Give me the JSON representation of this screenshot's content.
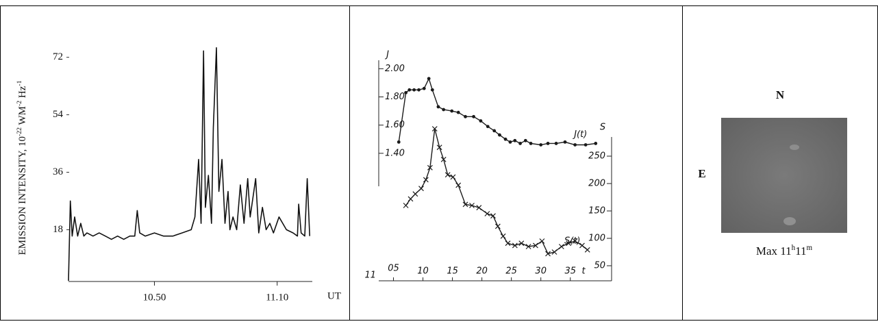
{
  "chart_data": [
    {
      "type": "line",
      "ylabel": [
        "EMISSION INTENSITY, 10",
        "-22",
        " WM",
        "-2",
        " Hz",
        "-1"
      ],
      "xlabel": "UT",
      "x": [
        636,
        636.3,
        636.6,
        637,
        637.5,
        638,
        638.5,
        639,
        640,
        641,
        642,
        643,
        644,
        645,
        646,
        646.8,
        647.2,
        647.6,
        648.5,
        650,
        651.5,
        653,
        654.5,
        656,
        656.6,
        657.2,
        657.6,
        658,
        658.3,
        658.8,
        659.3,
        659.6,
        660.1,
        660.5,
        661,
        661.5,
        662,
        662.3,
        662.8,
        663.4,
        664,
        664.6,
        665.2,
        665.6,
        666.5,
        667,
        667.6,
        668.2,
        668.8,
        669.4,
        670.3,
        671.5,
        672.6,
        673.3,
        673.5,
        673.9,
        674.5,
        674.9,
        675.3
      ],
      "series": [
        {
          "name": "Emission intensity",
          "color": "#111111",
          "values": [
            2,
            27,
            16,
            22,
            16,
            20,
            16,
            17,
            16,
            17,
            16,
            15,
            16,
            15,
            16,
            16,
            24,
            17,
            16,
            17,
            16,
            16,
            17,
            18,
            22,
            40,
            20,
            74,
            25,
            35,
            20,
            50,
            75,
            30,
            40,
            20,
            30,
            18,
            22,
            18,
            32,
            20,
            34,
            22,
            34,
            17,
            25,
            18,
            20,
            17,
            22,
            18,
            17,
            16,
            26,
            17,
            16,
            34,
            16
          ]
        }
      ],
      "xlim": [
        636,
        675.5
      ],
      "ylim": [
        2,
        76
      ],
      "xticks": [
        {
          "value": 650,
          "label": "10.50"
        },
        {
          "value": 670,
          "label": "11.10"
        }
      ],
      "yticks": [
        18,
        36,
        54,
        72
      ]
    },
    {
      "type": "line",
      "ylabel": "J",
      "y2label": "S",
      "xlabel": "t",
      "xtick_prefix": "11",
      "series": [
        {
          "name": "J(t)",
          "color": "#1a1a1a",
          "marker": "dot",
          "x": [
            5.9,
            7.1,
            7.7,
            8.5,
            9.3,
            10.2,
            11,
            11.6,
            12.6,
            13.5,
            14.9,
            16,
            17.2,
            18.6,
            19.8,
            21,
            22.1,
            23,
            24,
            24.8,
            25.6,
            26.5,
            27.4,
            28.3,
            30,
            31.2,
            32.6,
            34.1,
            35.8,
            37.6,
            39.3
          ],
          "values": [
            1.48,
            1.83,
            1.85,
            1.85,
            1.85,
            1.86,
            1.93,
            1.85,
            1.73,
            1.71,
            1.7,
            1.69,
            1.66,
            1.66,
            1.63,
            1.59,
            1.56,
            1.53,
            1.5,
            1.48,
            1.49,
            1.47,
            1.49,
            1.47,
            1.46,
            1.47,
            1.47,
            1.48,
            1.46,
            1.46,
            1.47
          ]
        },
        {
          "name": "S(t)",
          "color": "#1a1a1a",
          "marker": "cross",
          "axis": "y2",
          "x": [
            7.1,
            7.9,
            8.7,
            9.7,
            10.5,
            11.2,
            12,
            12.8,
            13.5,
            14.2,
            15.1,
            16,
            17.2,
            18.3,
            19.5,
            20.9,
            21.9,
            22.7,
            23.6,
            24.4,
            25.6,
            26.7,
            27.9,
            29.1,
            30.2,
            31.2,
            32.3,
            33.5,
            34.7,
            35.8,
            37,
            37.9
          ],
          "values": [
            160,
            172,
            181,
            191,
            207,
            229,
            300,
            266,
            244,
            216,
            212,
            197,
            162,
            160,
            156,
            145,
            141,
            122,
            104,
            91,
            87,
            91,
            85,
            87,
            95,
            72,
            75,
            85,
            91,
            95,
            87,
            79
          ]
        }
      ],
      "xlim": [
        2.5,
        42
      ],
      "ylim": [
        1.2,
        2.06
      ],
      "y2lim": [
        25,
        285
      ],
      "xticks": [
        {
          "value": 5,
          "label": "05"
        },
        10,
        15,
        20,
        25,
        30,
        35
      ],
      "yticks": [
        {
          "value": 1.4,
          "label": "1.40"
        },
        {
          "value": 1.6,
          "label": "1.60"
        },
        {
          "value": 1.8,
          "label": "1.80"
        },
        {
          "value": 2,
          "label": "2.00"
        }
      ],
      "y2ticks": [
        50,
        100,
        150,
        200,
        250
      ]
    }
  ],
  "image_panel": {
    "north": "N",
    "east": "E",
    "caption": [
      "Max 11",
      "h",
      "11",
      "m"
    ]
  }
}
